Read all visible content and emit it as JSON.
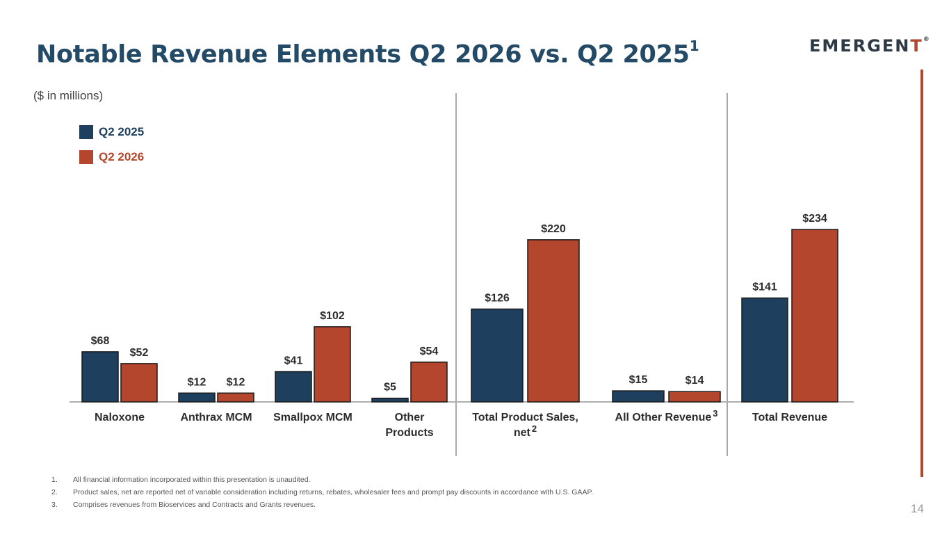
{
  "slide": {
    "title": "Notable Revenue Elements Q2 2026 vs. Q2 2025",
    "title_sup": "1",
    "logo": {
      "prefix": "EMERGEN",
      "accent": "T",
      "tm": "®"
    },
    "units": "($ in millions)",
    "page_number": "14"
  },
  "legend": {
    "items": [
      {
        "label": "Q2 2025",
        "color": "#1e3f5d"
      },
      {
        "label": "Q2 2026",
        "color": "#b3462d"
      }
    ]
  },
  "chart_data": {
    "type": "bar",
    "categories": [
      "Naloxone",
      "Anthrax MCM",
      "Smallpox MCM",
      "Other\nProducts",
      "Total Product Sales,\nnet",
      "All Other Revenue",
      "Total Revenue"
    ],
    "category_sups": [
      "",
      "",
      "",
      "",
      "2",
      "3",
      ""
    ],
    "series": [
      {
        "name": "Q2 2025",
        "color": "#1e3f5d",
        "values": [
          68,
          12,
          41,
          5,
          126,
          15,
          141
        ],
        "labels": [
          "$68",
          "$12",
          "$41",
          "$5",
          "$126",
          "$15",
          "$141"
        ]
      },
      {
        "name": "Q2 2026",
        "color": "#b3462d",
        "values": [
          52,
          12,
          102,
          54,
          220,
          14,
          234
        ],
        "labels": [
          "$52",
          "$12",
          "$102",
          "$54",
          "$220",
          "$14",
          "$234"
        ]
      }
    ]
  },
  "footnotes": [
    {
      "num": "1.",
      "text": "All financial information incorporated within this presentation is unaudited."
    },
    {
      "num": "2.",
      "text": "Product sales, net are reported net of variable consideration including returns, rebates, wholesaler fees and prompt pay discounts in accordance with U.S. GAAP."
    },
    {
      "num": "3.",
      "text": "Comprises revenues from Bioservices and Contracts and Grants revenues."
    }
  ]
}
